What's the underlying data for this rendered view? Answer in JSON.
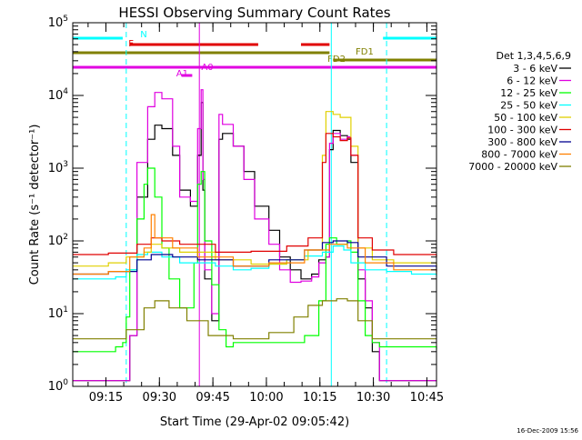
{
  "title": "HESSI Observing Summary Count Rates",
  "footer_date": "16-Dec-2009 15:56",
  "colors": {
    "black": "#000000",
    "magenta": "#e000e0",
    "green": "#00ff00",
    "cyan": "#00ffff",
    "yellow": "#e0d000",
    "red": "#e00000",
    "navy": "#000090",
    "orange": "#ff8000",
    "olive": "#808000"
  },
  "chart_data": {
    "type": "line",
    "title": "HESSI Observing Summary Count Rates",
    "xlabel": "Start Time (29-Apr-02 09:05:42)",
    "ylabel": "Count Rate (s⁻¹ detector⁻¹)",
    "y_scale": "log",
    "ylim": [
      1,
      100000
    ],
    "xlim_minutes": [
      0,
      102
    ],
    "x_ticks": [
      {
        "label": "09:15",
        "minutes": 9.3
      },
      {
        "label": "09:30",
        "minutes": 24.3
      },
      {
        "label": "09:45",
        "minutes": 39.3
      },
      {
        "label": "10:00",
        "minutes": 54.3
      },
      {
        "label": "10:15",
        "minutes": 69.3
      },
      {
        "label": "10:30",
        "minutes": 84.3
      },
      {
        "label": "10:45",
        "minutes": 99.3
      }
    ],
    "y_ticks": [
      {
        "base": "10",
        "exp": "0",
        "value": 1
      },
      {
        "base": "10",
        "exp": "1",
        "value": 10
      },
      {
        "base": "10",
        "exp": "2",
        "value": 100
      },
      {
        "base": "10",
        "exp": "3",
        "value": 1000
      },
      {
        "base": "10",
        "exp": "4",
        "value": 10000
      },
      {
        "base": "10",
        "exp": "5",
        "value": 100000
      }
    ],
    "legend_title": "Det 1,3,4,5,6,9",
    "legend_position": "right",
    "series": [
      {
        "name": "3 - 6 keV",
        "color": "#000000",
        "points": [
          [
            0,
            1.2
          ],
          [
            14,
            1.2
          ],
          [
            16,
            5
          ],
          [
            18,
            400
          ],
          [
            21,
            2500
          ],
          [
            23,
            3900
          ],
          [
            25,
            3500
          ],
          [
            28,
            1500
          ],
          [
            30,
            500
          ],
          [
            33,
            300
          ],
          [
            35,
            1500
          ],
          [
            36,
            8000
          ],
          [
            36.5,
            500
          ],
          [
            37,
            30
          ],
          [
            39,
            8
          ],
          [
            41,
            2500
          ],
          [
            42,
            3000
          ],
          [
            45,
            2000
          ],
          [
            48,
            900
          ],
          [
            51,
            300
          ],
          [
            55,
            140
          ],
          [
            58,
            60
          ],
          [
            61,
            40
          ],
          [
            64,
            30
          ],
          [
            67,
            35
          ],
          [
            69,
            55
          ],
          [
            71,
            60
          ],
          [
            72,
            1800
          ],
          [
            73,
            3300
          ],
          [
            75,
            2800
          ],
          [
            77,
            2500
          ],
          [
            78,
            1200
          ],
          [
            80,
            30
          ],
          [
            82,
            12
          ],
          [
            84,
            3
          ],
          [
            86,
            1.2
          ],
          [
            102,
            1.2
          ]
        ]
      },
      {
        "name": "6 - 12 keV",
        "color": "#e000e0",
        "points": [
          [
            0,
            1.2
          ],
          [
            14,
            1.2
          ],
          [
            16,
            5
          ],
          [
            18,
            1200
          ],
          [
            21,
            7000
          ],
          [
            23,
            11000
          ],
          [
            25,
            9000
          ],
          [
            28,
            2000
          ],
          [
            30,
            400
          ],
          [
            33,
            350
          ],
          [
            35,
            3500
          ],
          [
            36,
            12000
          ],
          [
            36.5,
            700
          ],
          [
            37,
            40
          ],
          [
            39,
            10
          ],
          [
            41,
            5500
          ],
          [
            42,
            4000
          ],
          [
            45,
            2000
          ],
          [
            48,
            700
          ],
          [
            51,
            200
          ],
          [
            55,
            90
          ],
          [
            58,
            40
          ],
          [
            61,
            27
          ],
          [
            64,
            28
          ],
          [
            67,
            32
          ],
          [
            69,
            50
          ],
          [
            71,
            60
          ],
          [
            72,
            2200
          ],
          [
            73,
            3000
          ],
          [
            75,
            2500
          ],
          [
            77,
            2700
          ],
          [
            78,
            1500
          ],
          [
            80,
            40
          ],
          [
            82,
            15
          ],
          [
            84,
            4
          ],
          [
            86,
            1.2
          ],
          [
            102,
            1.2
          ]
        ]
      },
      {
        "name": "12 - 25 keV",
        "color": "#00ff00",
        "points": [
          [
            0,
            3
          ],
          [
            12,
            3.5
          ],
          [
            14,
            4
          ],
          [
            15,
            9
          ],
          [
            16,
            40
          ],
          [
            18,
            200
          ],
          [
            20,
            600
          ],
          [
            21,
            1000
          ],
          [
            23,
            400
          ],
          [
            25,
            80
          ],
          [
            27,
            30
          ],
          [
            30,
            12
          ],
          [
            33,
            12
          ],
          [
            34,
            50
          ],
          [
            35,
            600
          ],
          [
            36,
            900
          ],
          [
            37,
            100
          ],
          [
            39,
            25
          ],
          [
            41,
            6
          ],
          [
            43,
            3.5
          ],
          [
            45,
            4
          ],
          [
            55,
            4
          ],
          [
            65,
            5
          ],
          [
            69,
            15
          ],
          [
            71,
            90
          ],
          [
            72,
            110
          ],
          [
            74,
            90
          ],
          [
            77,
            100
          ],
          [
            78,
            70
          ],
          [
            80,
            15
          ],
          [
            82,
            5
          ],
          [
            84,
            4
          ],
          [
            86,
            3.5
          ],
          [
            102,
            3.2
          ]
        ]
      },
      {
        "name": "25 - 50 keV",
        "color": "#00ffff",
        "points": [
          [
            0,
            30
          ],
          [
            12,
            32
          ],
          [
            15,
            40
          ],
          [
            18,
            65
          ],
          [
            21,
            70
          ],
          [
            25,
            60
          ],
          [
            30,
            50
          ],
          [
            35,
            50
          ],
          [
            40,
            45
          ],
          [
            45,
            40
          ],
          [
            50,
            42
          ],
          [
            55,
            48
          ],
          [
            60,
            55
          ],
          [
            65,
            62
          ],
          [
            70,
            70
          ],
          [
            73,
            85
          ],
          [
            76,
            75
          ],
          [
            78,
            50
          ],
          [
            82,
            40
          ],
          [
            88,
            38
          ],
          [
            95,
            35
          ],
          [
            102,
            33
          ]
        ]
      },
      {
        "name": "50 - 100 keV",
        "color": "#e0d000",
        "points": [
          [
            0,
            45
          ],
          [
            10,
            50
          ],
          [
            15,
            60
          ],
          [
            20,
            70
          ],
          [
            22,
            90
          ],
          [
            25,
            80
          ],
          [
            30,
            70
          ],
          [
            40,
            55
          ],
          [
            50,
            48
          ],
          [
            60,
            55
          ],
          [
            66,
            75
          ],
          [
            70,
            1500
          ],
          [
            71,
            6000
          ],
          [
            73,
            5500
          ],
          [
            75,
            5000
          ],
          [
            77,
            5000
          ],
          [
            78,
            2000
          ],
          [
            80,
            80
          ],
          [
            84,
            55
          ],
          [
            90,
            50
          ],
          [
            102,
            45
          ]
        ]
      },
      {
        "name": "100 - 300 keV",
        "color": "#e00000",
        "points": [
          [
            0,
            65
          ],
          [
            10,
            68
          ],
          [
            18,
            90
          ],
          [
            22,
            110
          ],
          [
            25,
            100
          ],
          [
            30,
            90
          ],
          [
            40,
            70
          ],
          [
            50,
            72
          ],
          [
            60,
            85
          ],
          [
            66,
            110
          ],
          [
            70,
            1200
          ],
          [
            71,
            3000
          ],
          [
            73,
            2700
          ],
          [
            75,
            2400
          ],
          [
            77,
            2600
          ],
          [
            78,
            1500
          ],
          [
            80,
            110
          ],
          [
            84,
            75
          ],
          [
            90,
            65
          ],
          [
            102,
            60
          ]
        ]
      },
      {
        "name": "300 - 800 keV",
        "color": "#000090",
        "points": [
          [
            0,
            35
          ],
          [
            10,
            38
          ],
          [
            18,
            55
          ],
          [
            22,
            65
          ],
          [
            28,
            60
          ],
          [
            35,
            55
          ],
          [
            45,
            45
          ],
          [
            55,
            55
          ],
          [
            65,
            75
          ],
          [
            70,
            95
          ],
          [
            73,
            100
          ],
          [
            77,
            95
          ],
          [
            80,
            60
          ],
          [
            88,
            45
          ],
          [
            102,
            38
          ]
        ]
      },
      {
        "name": "800 - 7000 keV",
        "color": "#ff8000",
        "points": [
          [
            0,
            35
          ],
          [
            10,
            38
          ],
          [
            16,
            60
          ],
          [
            20,
            80
          ],
          [
            22,
            230
          ],
          [
            23,
            110
          ],
          [
            28,
            80
          ],
          [
            35,
            60
          ],
          [
            45,
            45
          ],
          [
            55,
            50
          ],
          [
            65,
            75
          ],
          [
            72,
            90
          ],
          [
            77,
            80
          ],
          [
            82,
            50
          ],
          [
            90,
            40
          ],
          [
            102,
            35
          ]
        ]
      },
      {
        "name": "7000 - 20000 keV",
        "color": "#808000",
        "points": [
          [
            0,
            4.5
          ],
          [
            12,
            4.5
          ],
          [
            15,
            6
          ],
          [
            20,
            12
          ],
          [
            23,
            15
          ],
          [
            27,
            12
          ],
          [
            32,
            8
          ],
          [
            38,
            5
          ],
          [
            45,
            4.5
          ],
          [
            55,
            5.5
          ],
          [
            62,
            9
          ],
          [
            66,
            13
          ],
          [
            70,
            15
          ],
          [
            74,
            16
          ],
          [
            77,
            15
          ],
          [
            80,
            8
          ],
          [
            84,
            4.5
          ],
          [
            90,
            4.5
          ],
          [
            102,
            4.5
          ]
        ]
      }
    ],
    "flags": [
      {
        "label": "N",
        "color": "#00ffff",
        "row": 0,
        "segments": [
          [
            0,
            14
          ],
          [
            87,
            102
          ]
        ]
      },
      {
        "label": "F",
        "color": "#e00000",
        "row": 1,
        "segments": [
          [
            16,
            52
          ],
          [
            64,
            72
          ]
        ]
      },
      {
        "label": "FD1",
        "color": "#808000",
        "row": 2,
        "segments": [
          [
            0,
            72
          ]
        ]
      },
      {
        "label": "FD2",
        "color": "#808000",
        "row": 3,
        "segments": [
          [
            73,
            102
          ]
        ]
      },
      {
        "label": "A1",
        "color": "#e000e0",
        "row": 4,
        "segments": [
          [
            0,
            102
          ]
        ]
      },
      {
        "label": "A0",
        "color": "#e000e0",
        "row": 5,
        "segments": [
          [
            30.5,
            33.5
          ]
        ]
      }
    ],
    "vertical_markers": [
      {
        "minutes": 15,
        "color": "#00ffff",
        "style": "dashed"
      },
      {
        "minutes": 72.5,
        "color": "#00ffff",
        "style": "solid"
      },
      {
        "minutes": 88,
        "color": "#00ffff",
        "style": "dashed"
      },
      {
        "minutes": 35.5,
        "color": "#e000e0",
        "style": "solid"
      }
    ]
  }
}
